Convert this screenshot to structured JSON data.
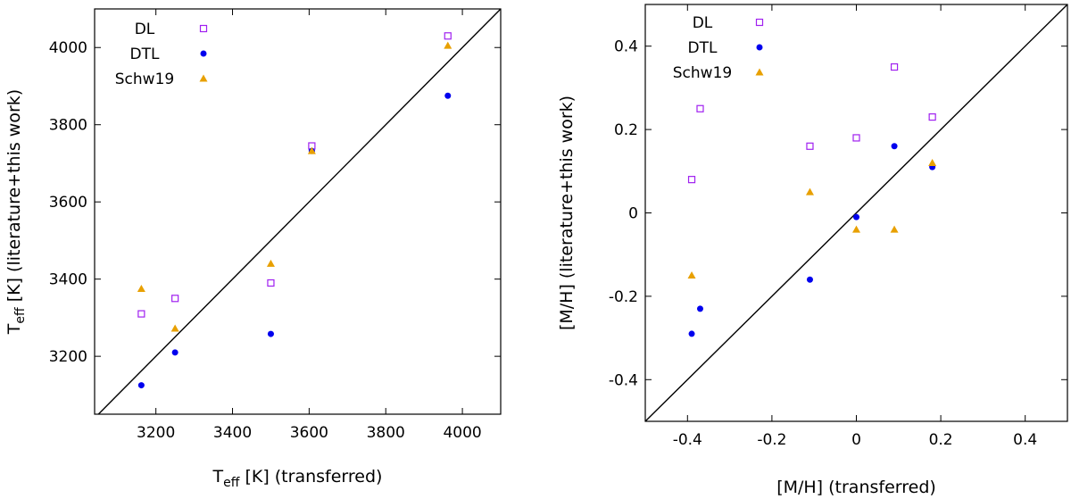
{
  "colors": {
    "dl": "#a020f0",
    "dtl": "#0000ee",
    "schw19": "#e8a000",
    "line": "#000000"
  },
  "chart_data": [
    {
      "type": "scatter",
      "id": "teff",
      "xlabel_main": "T",
      "xlabel_sub": "eff",
      "xlabel_rest": " [K] (transferred)",
      "ylabel_main": "T",
      "ylabel_sub": "eff",
      "ylabel_rest": " [K] (literature+this work)",
      "xlim": [
        3040,
        4100
      ],
      "ylim": [
        3050,
        4100
      ],
      "xticks": [
        3200,
        3400,
        3600,
        3800,
        4000
      ],
      "yticks": [
        3200,
        3400,
        3600,
        3800,
        4000
      ],
      "xtick_labels": [
        "3200",
        "3400",
        "3600",
        "3800",
        "4000"
      ],
      "ytick_labels": [
        "3200",
        "3400",
        "3600",
        "3800",
        "4000"
      ],
      "one_to_one_line": true,
      "legend": [
        "DL",
        "DTL",
        "Schw19"
      ],
      "series": [
        {
          "name": "DL",
          "marker": "open-square",
          "x": [
            3162,
            3250,
            3500,
            3607,
            3962
          ],
          "y": [
            3310,
            3350,
            3390,
            3745,
            4030
          ]
        },
        {
          "name": "DTL",
          "marker": "filled-circle",
          "x": [
            3162,
            3250,
            3500,
            3607,
            3962
          ],
          "y": [
            3125,
            3210,
            3258,
            3732,
            3875
          ]
        },
        {
          "name": "Schw19",
          "marker": "filled-triangle",
          "x": [
            3162,
            3250,
            3500,
            3607,
            3962
          ],
          "y": [
            3375,
            3272,
            3440,
            3732,
            4005
          ]
        }
      ]
    },
    {
      "type": "scatter",
      "id": "mh",
      "xlabel": "[M/H] (transferred)",
      "ylabel": "[M/H] (literature+this work)",
      "xlim": [
        -0.5,
        0.5
      ],
      "ylim": [
        -0.5,
        0.5
      ],
      "xticks": [
        -0.4,
        -0.2,
        0,
        0.2,
        0.4
      ],
      "yticks": [
        -0.4,
        -0.2,
        0,
        0.2,
        0.4
      ],
      "xtick_labels": [
        "-0.4",
        "-0.2",
        "0",
        "0.2",
        "0.4"
      ],
      "ytick_labels": [
        "-0.4",
        "-0.2",
        "0",
        "0.2",
        "0.4"
      ],
      "one_to_one_line": true,
      "legend": [
        "DL",
        "DTL",
        "Schw19"
      ],
      "series": [
        {
          "name": "DL",
          "marker": "open-square",
          "x": [
            -0.39,
            -0.37,
            -0.11,
            0.0,
            0.09,
            0.18
          ],
          "y": [
            0.08,
            0.25,
            0.16,
            0.18,
            0.35,
            0.23
          ]
        },
        {
          "name": "DTL",
          "marker": "filled-circle",
          "x": [
            -0.39,
            -0.37,
            -0.11,
            0.0,
            0.09,
            0.18
          ],
          "y": [
            -0.29,
            -0.23,
            -0.16,
            -0.01,
            0.16,
            0.11
          ]
        },
        {
          "name": "Schw19",
          "marker": "filled-triangle",
          "x": [
            -0.39,
            -0.11,
            0.0,
            0.09,
            0.18
          ],
          "y": [
            -0.15,
            0.05,
            -0.04,
            -0.04,
            0.12
          ]
        }
      ]
    }
  ]
}
